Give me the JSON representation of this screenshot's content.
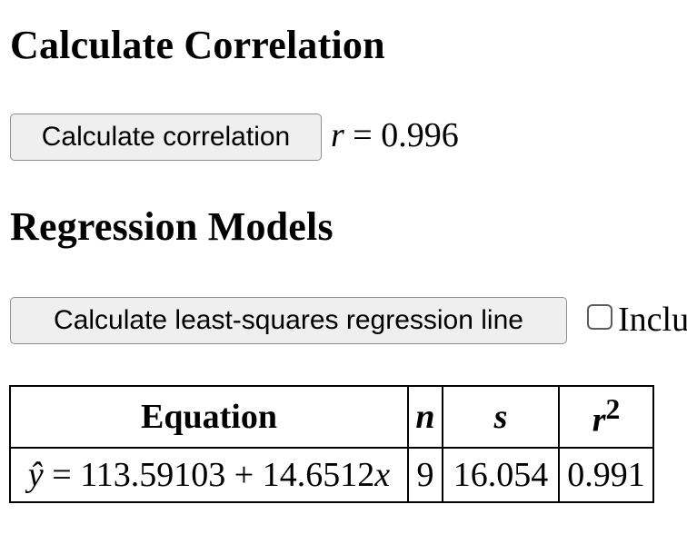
{
  "correlation": {
    "heading": "Calculate Correlation",
    "button_label": "Calculate correlation",
    "result_var": "r",
    "result_eq": " = ",
    "result_value": "0.996"
  },
  "regression": {
    "heading": "Regression Models",
    "button_label": "Calculate least-squares regression line",
    "checkbox_label": "Inclu",
    "checkbox_checked": false,
    "table": {
      "headers": {
        "equation": "Equation",
        "n": "n",
        "s": "s",
        "r2_base": "r",
        "r2_exp": "2"
      },
      "rows": [
        {
          "yhat": "ŷ",
          "equation_body": " = 113.59103 + 14.6512",
          "x_var": "x",
          "n": "9",
          "s": "16.054",
          "r2": "0.991"
        }
      ]
    }
  }
}
